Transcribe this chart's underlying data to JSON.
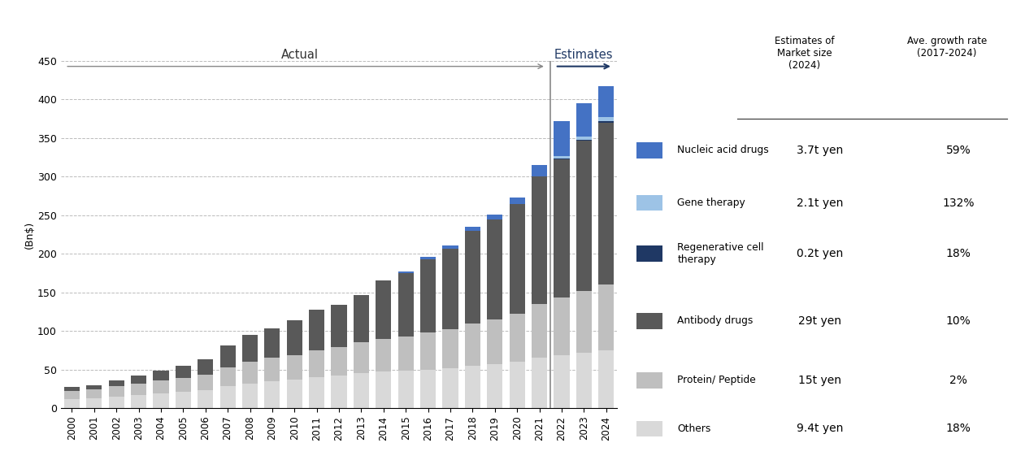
{
  "years": [
    "2000",
    "2001",
    "2002",
    "2003",
    "2004",
    "2005",
    "2006",
    "2007",
    "2008",
    "2009",
    "2010",
    "2011",
    "2012",
    "2013",
    "2014",
    "2015",
    "2016",
    "2017",
    "2018",
    "2019",
    "2020",
    "2021",
    "2022",
    "2023",
    "2024"
  ],
  "others": [
    12,
    13,
    15,
    17,
    19,
    21,
    23,
    28,
    32,
    35,
    37,
    40,
    42,
    45,
    47,
    48,
    50,
    52,
    55,
    57,
    60,
    65,
    68,
    72,
    75
  ],
  "protein_peptide": [
    10,
    11,
    13,
    15,
    17,
    18,
    20,
    25,
    28,
    30,
    32,
    35,
    37,
    40,
    43,
    45,
    48,
    50,
    55,
    58,
    62,
    70,
    75,
    80,
    85
  ],
  "antibody": [
    5,
    6,
    8,
    10,
    12,
    16,
    20,
    28,
    35,
    38,
    45,
    52,
    55,
    62,
    75,
    82,
    95,
    105,
    120,
    130,
    143,
    165,
    180,
    195,
    210
  ],
  "regenerative": [
    0,
    0,
    0,
    0,
    0,
    0,
    0,
    0,
    0,
    0,
    0,
    0,
    0,
    0,
    0,
    0,
    0,
    0,
    0,
    0,
    0,
    0,
    1,
    1,
    2
  ],
  "gene_therapy": [
    0,
    0,
    0,
    0,
    0,
    0,
    0,
    0,
    0,
    0,
    0,
    0,
    0,
    0,
    0,
    0,
    0,
    0,
    0,
    0,
    0,
    0,
    3,
    4,
    5
  ],
  "nucleic_acid": [
    0,
    0,
    0,
    0,
    0,
    0,
    0,
    0,
    0,
    0,
    0,
    0,
    0,
    0,
    0,
    2,
    3,
    4,
    5,
    6,
    8,
    15,
    45,
    43,
    40
  ],
  "divider_year_idx": 21,
  "colors": {
    "others": "#d9d9d9",
    "protein_peptide": "#bfbfbf",
    "antibody": "#595959",
    "regenerative": "#1f3864",
    "gene_therapy": "#9dc3e6",
    "nucleic_acid": "#4472c4"
  },
  "legend_items": [
    {
      "label": "Nucleic acid drugs",
      "market": "3.7t yen",
      "growth": "59%",
      "color": "#4472c4"
    },
    {
      "label": "Gene therapy",
      "market": "2.1t yen",
      "growth": "132%",
      "color": "#9dc3e6"
    },
    {
      "label": "Regenerative cell\ntherapy",
      "market": "0.2t yen",
      "growth": "18%",
      "color": "#1f3864"
    },
    {
      "label": "Antibody drugs",
      "market": "29t yen",
      "growth": "10%",
      "color": "#595959"
    },
    {
      "label": "Protein/ Peptide",
      "market": "15t yen",
      "growth": "2%",
      "color": "#bfbfbf"
    },
    {
      "label": "Others",
      "market": "9.4t yen",
      "growth": "18%",
      "color": "#d9d9d9"
    }
  ],
  "ylabel": "(Bn$)",
  "ylim": [
    0,
    450
  ],
  "yticks": [
    0,
    50,
    100,
    150,
    200,
    250,
    300,
    350,
    400,
    450
  ],
  "actual_label": "Actual",
  "estimates_label": "Estimates",
  "col1_header": "Estimates of\nMarket size\n(2024)",
  "col2_header": "Ave. growth rate\n(2017-2024)"
}
